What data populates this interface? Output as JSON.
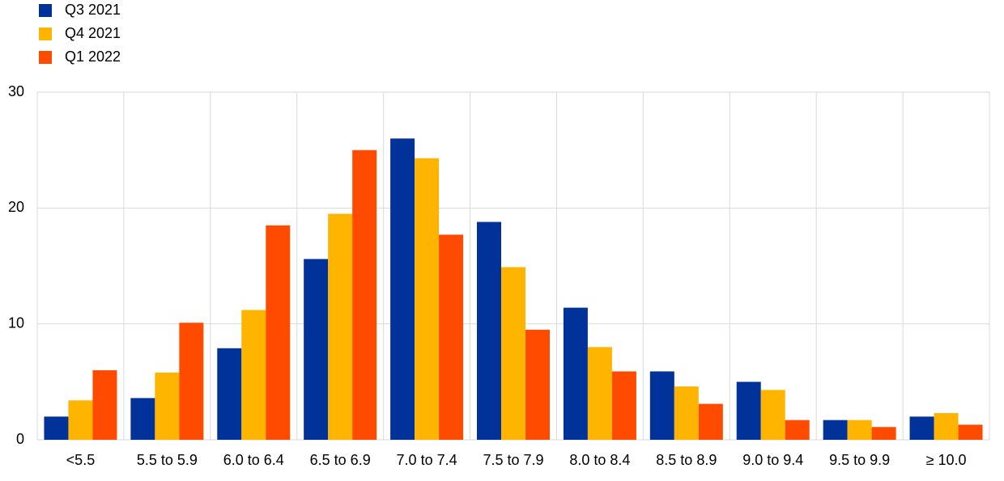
{
  "chart_data": {
    "type": "bar",
    "categories": [
      "<5.5",
      "5.5 to 5.9",
      "6.0 to 6.4",
      "6.5 to 6.9",
      "7.0 to 7.4",
      "7.5 to 7.9",
      "8.0 to 8.4",
      "8.5 to 8.9",
      "9.0 to 9.4",
      "9.5 to 9.9",
      "≥ 10.0"
    ],
    "series": [
      {
        "name": "Q3 2021",
        "color": "#003299",
        "values": [
          2.0,
          3.6,
          7.9,
          15.6,
          26.0,
          18.8,
          11.4,
          5.9,
          5.0,
          1.7,
          2.0
        ]
      },
      {
        "name": "Q4 2021",
        "color": "#ffb400",
        "values": [
          3.4,
          5.8,
          11.2,
          19.5,
          24.3,
          14.9,
          8.0,
          4.6,
          4.3,
          1.7,
          2.3
        ]
      },
      {
        "name": "Q1 2022",
        "color": "#ff4b00",
        "values": [
          6.0,
          10.1,
          18.5,
          25.0,
          17.7,
          9.5,
          5.9,
          3.1,
          1.7,
          1.1,
          1.3
        ]
      }
    ],
    "ylim": [
      0,
      30
    ],
    "yticks": [
      0,
      10,
      20,
      30
    ],
    "grid": true
  }
}
